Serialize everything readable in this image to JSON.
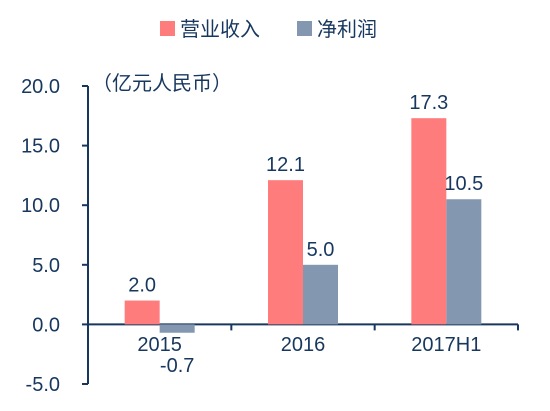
{
  "chart_data": {
    "type": "bar",
    "unit_label": "（亿元人民币）",
    "categories": [
      "2015",
      "2016",
      "2017H1"
    ],
    "series": [
      {
        "name": "营业收入",
        "color": "#ff7c7c",
        "values": [
          2.0,
          12.1,
          17.3
        ],
        "labels": [
          "2.0",
          "12.1",
          "17.3"
        ]
      },
      {
        "name": "净利润",
        "color": "#8497b0",
        "values": [
          -0.7,
          5.0,
          10.5
        ],
        "labels": [
          "-0.7",
          "5.0",
          "10.5"
        ]
      }
    ],
    "ylim": [
      -5,
      20
    ],
    "yticks": [
      20,
      15,
      10,
      5,
      0,
      -5
    ],
    "ytick_labels": [
      "20.0",
      "15.0",
      "10.0",
      "5.0",
      "0.0",
      "-5.0"
    ],
    "axis_color": "#17375e",
    "text_color": "#17375e",
    "grid": false,
    "legend_position": "top"
  }
}
